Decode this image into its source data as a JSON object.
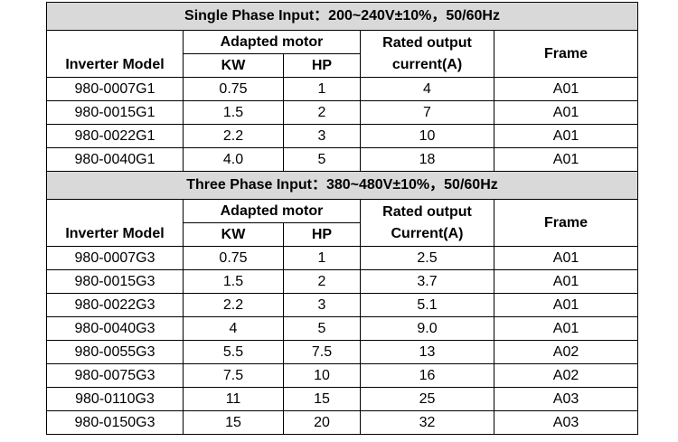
{
  "single": {
    "title": "Single Phase Input：200~240V±10%，50/60Hz",
    "headers": {
      "inverter_model": "Inverter Model",
      "adapted_motor": "Adapted motor",
      "kw": "KW",
      "hp": "HP",
      "rated_output_1": "Rated output",
      "rated_output_2": "current(A)",
      "frame": "Frame"
    },
    "rows": [
      {
        "model": "980-0007G1",
        "kw": "0.75",
        "hp": "1",
        "current": "4",
        "frame": "A01"
      },
      {
        "model": "980-0015G1",
        "kw": "1.5",
        "hp": "2",
        "current": "7",
        "frame": "A01"
      },
      {
        "model": "980-0022G1",
        "kw": "2.2",
        "hp": "3",
        "current": "10",
        "frame": "A01"
      },
      {
        "model": "980-0040G1",
        "kw": "4.0",
        "hp": "5",
        "current": "18",
        "frame": "A01"
      }
    ]
  },
  "three": {
    "title": "Three Phase Input：380~480V±10%，50/60Hz",
    "headers": {
      "inverter_model": "Inverter Model",
      "adapted_motor": "Adapted motor",
      "kw": "KW",
      "hp": "HP",
      "rated_output_1": "Rated output",
      "rated_output_2": "Current(A)",
      "frame": "Frame"
    },
    "rows": [
      {
        "model": "980-0007G3",
        "kw": "0.75",
        "hp": "1",
        "current": "2.5",
        "frame": "A01"
      },
      {
        "model": "980-0015G3",
        "kw": "1.5",
        "hp": "2",
        "current": "3.7",
        "frame": "A01"
      },
      {
        "model": "980-0022G3",
        "kw": "2.2",
        "hp": "3",
        "current": "5.1",
        "frame": "A01"
      },
      {
        "model": "980-0040G3",
        "kw": "4",
        "hp": "5",
        "current": "9.0",
        "frame": "A01"
      },
      {
        "model": "980-0055G3",
        "kw": "5.5",
        "hp": "7.5",
        "current": "13",
        "frame": "A02"
      },
      {
        "model": "980-0075G3",
        "kw": "7.5",
        "hp": "10",
        "current": "16",
        "frame": "A02"
      },
      {
        "model": "980-0110G3",
        "kw": "11",
        "hp": "15",
        "current": "25",
        "frame": "A03"
      },
      {
        "model": "980-0150G3",
        "kw": "15",
        "hp": "20",
        "current": "32",
        "frame": "A03"
      }
    ]
  }
}
